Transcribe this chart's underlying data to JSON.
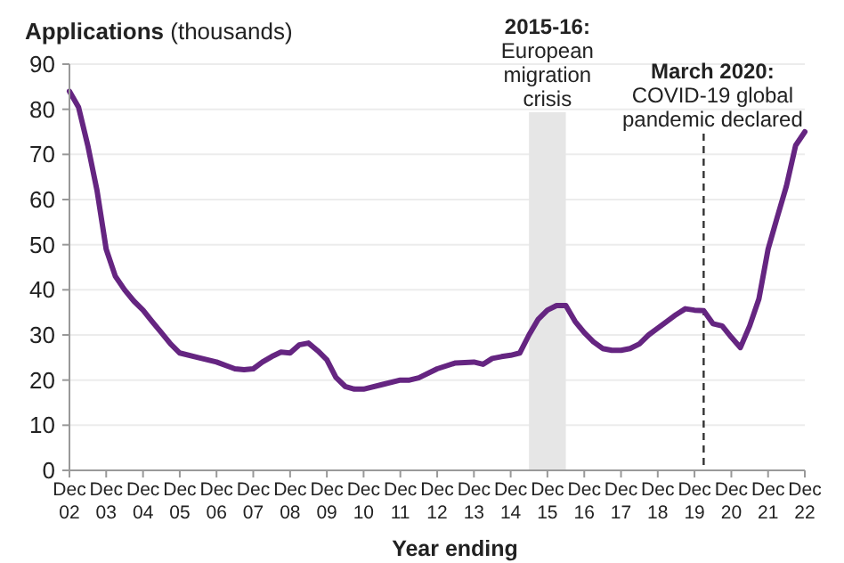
{
  "chart_data": {
    "type": "line",
    "xlabel": "Year ending",
    "ylabel": "Applications (thousands)",
    "x": [
      "2002-12",
      "2003-03",
      "2003-06",
      "2003-09",
      "2003-12",
      "2004-03",
      "2004-06",
      "2004-09",
      "2004-12",
      "2005-03",
      "2005-06",
      "2005-09",
      "2005-12",
      "2006-06",
      "2006-12",
      "2007-06",
      "2007-09",
      "2007-12",
      "2008-03",
      "2008-06",
      "2008-09",
      "2008-12",
      "2009-03",
      "2009-06",
      "2009-09",
      "2009-12",
      "2010-03",
      "2010-06",
      "2010-09",
      "2010-12",
      "2011-06",
      "2011-12",
      "2012-03",
      "2012-06",
      "2012-12",
      "2013-06",
      "2013-12",
      "2014-03",
      "2014-06",
      "2014-09",
      "2014-12",
      "2015-03",
      "2015-06",
      "2015-09",
      "2015-12",
      "2016-03",
      "2016-06",
      "2016-09",
      "2016-12",
      "2017-03",
      "2017-06",
      "2017-09",
      "2017-12",
      "2018-03",
      "2018-06",
      "2018-09",
      "2018-12",
      "2019-03",
      "2019-06",
      "2019-09",
      "2019-12",
      "2020-03",
      "2020-06",
      "2020-09",
      "2020-12",
      "2021-03",
      "2021-06",
      "2021-09",
      "2021-12",
      "2022-03",
      "2022-06",
      "2022-09",
      "2022-12"
    ],
    "series": [
      {
        "color": "#652581",
        "values": [
          84,
          80.5,
          72,
          62,
          49,
          43,
          40,
          37.5,
          35.5,
          33,
          30.5,
          28,
          26,
          25,
          24,
          22.5,
          22.3,
          22.5,
          24,
          25.2,
          26.2,
          26,
          27.8,
          28.2,
          26.5,
          24.5,
          20.6,
          18.6,
          18,
          18,
          19,
          20,
          20,
          20.5,
          22.5,
          23.8,
          24,
          23.5,
          24.8,
          25.2,
          25.5,
          26,
          30,
          33.5,
          35.5,
          36.5,
          36.5,
          33,
          30.5,
          28.5,
          27,
          26.6,
          26.6,
          27,
          28,
          30,
          31.5,
          33,
          34.5,
          35.8,
          35.5,
          35.4,
          32.5,
          32,
          29.5,
          27.2,
          32,
          38,
          49,
          56,
          63,
          72,
          75
        ]
      }
    ],
    "xlim": [
      "2002-12",
      "2022-12"
    ],
    "xticks": [
      {
        "value": "2002-12",
        "label": "Dec 02"
      },
      {
        "value": "2003-12",
        "label": "Dec 03"
      },
      {
        "value": "2004-12",
        "label": "Dec 04"
      },
      {
        "value": "2005-12",
        "label": "Dec 05"
      },
      {
        "value": "2006-12",
        "label": "Dec 06"
      },
      {
        "value": "2007-12",
        "label": "Dec 07"
      },
      {
        "value": "2008-12",
        "label": "Dec 08"
      },
      {
        "value": "2009-12",
        "label": "Dec 09"
      },
      {
        "value": "2010-12",
        "label": "Dec 10"
      },
      {
        "value": "2011-12",
        "label": "Dec 11"
      },
      {
        "value": "2012-12",
        "label": "Dec 12"
      },
      {
        "value": "2013-12",
        "label": "Dec 13"
      },
      {
        "value": "2014-12",
        "label": "Dec 14"
      },
      {
        "value": "2015-12",
        "label": "Dec 15"
      },
      {
        "value": "2016-12",
        "label": "Dec 16"
      },
      {
        "value": "2017-12",
        "label": "Dec 17"
      },
      {
        "value": "2018-12",
        "label": "Dec 18"
      },
      {
        "value": "2019-12",
        "label": "Dec 19"
      },
      {
        "value": "2020-12",
        "label": "Dec 20"
      },
      {
        "value": "2021-12",
        "label": "Dec 21"
      },
      {
        "value": "2022-12",
        "label": "Dec 22"
      }
    ],
    "ylim": [
      0,
      90
    ],
    "yticks": [
      0,
      10,
      20,
      30,
      40,
      50,
      60,
      70,
      80,
      90
    ],
    "grid": "y",
    "bands": [
      {
        "axis": "x",
        "from": "2015-06",
        "to": "2016-06",
        "label": "2015-16: European migration crisis",
        "color": "#e6e6e6"
      }
    ],
    "ref_lines": [
      {
        "axis": "x",
        "value": "2020-03",
        "label": "March 2020: COVID-19 global pandemic declared",
        "color": "#333333",
        "line_style": "dashed"
      }
    ]
  }
}
